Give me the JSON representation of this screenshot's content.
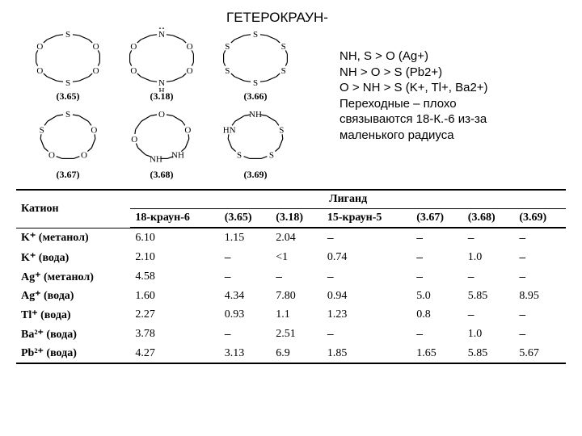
{
  "title": "ГЕТЕРОКРАУН-",
  "structures": {
    "row1": [
      {
        "label": "(3.65)",
        "ring": 18,
        "hetero": [
          [
            0,
            "S"
          ],
          [
            3,
            "O"
          ],
          [
            6,
            "O"
          ],
          [
            9,
            "S"
          ],
          [
            12,
            "O"
          ],
          [
            15,
            "O"
          ]
        ]
      },
      {
        "label": "(3.18)",
        "ring": 18,
        "hetero": [
          [
            0,
            "NH_top"
          ],
          [
            3,
            "O"
          ],
          [
            6,
            "O"
          ],
          [
            9,
            "NH_bot"
          ],
          [
            12,
            "O"
          ],
          [
            15,
            "O"
          ]
        ]
      },
      {
        "label": "(3.66)",
        "ring": 18,
        "hetero": [
          [
            0,
            "S"
          ],
          [
            3,
            "S"
          ],
          [
            6,
            "S"
          ],
          [
            9,
            "S"
          ],
          [
            12,
            "S"
          ],
          [
            15,
            "S"
          ]
        ]
      }
    ],
    "row2": [
      {
        "label": "(3.67)",
        "ring": 15,
        "hetero": [
          [
            0,
            "S"
          ],
          [
            3,
            "O"
          ],
          [
            6,
            "O"
          ],
          [
            9,
            "O"
          ],
          [
            12,
            "S"
          ]
        ]
      },
      {
        "label": "(3.68)",
        "ring": 15,
        "hetero": [
          [
            0,
            "O"
          ],
          [
            3,
            "O"
          ],
          [
            6,
            "NH_mid"
          ],
          [
            8,
            "NH_mid"
          ],
          [
            11,
            "O"
          ]
        ],
        "special": "368"
      },
      {
        "label": "(3.69)",
        "ring": 15,
        "hetero": [
          [
            0,
            "NH_l"
          ],
          [
            3,
            "S"
          ],
          [
            6,
            "S"
          ],
          [
            9,
            "S"
          ],
          [
            12,
            "HN_r"
          ]
        ],
        "special": "369"
      }
    ]
  },
  "side_text": [
    "NH, S > O (Ag+)",
    "NH > O > S (Pb2+)",
    "O > NH > S (K+, Tl+, Ba2+)",
    "Переходные – плохо",
    "связываются 18-К.-6 из-за",
    "маленького радиуса"
  ],
  "table": {
    "cation_header": "Катион",
    "ligand_header": "Лиганд",
    "columns": [
      "18-краун-6",
      "(3.65)",
      "(3.18)",
      "15-краун-5",
      "(3.67)",
      "(3.68)",
      "(3.69)"
    ],
    "rows": [
      {
        "cation": "K⁺ (метанол)",
        "cells": [
          "6.10",
          "1.15",
          "2.04",
          "–",
          "–",
          "–",
          "–"
        ]
      },
      {
        "cation": "K⁺ (вода)",
        "cells": [
          "2.10",
          "–",
          "<1",
          "0.74",
          "–",
          "1.0",
          "–"
        ]
      },
      {
        "cation": "Ag⁺ (метанол)",
        "cells": [
          "4.58",
          "–",
          "–",
          "–",
          "–",
          "–",
          "–"
        ]
      },
      {
        "cation": "Ag⁺ (вода)",
        "cells": [
          "1.60",
          "4.34",
          "7.80",
          "0.94",
          "5.0",
          "5.85",
          "8.95"
        ]
      },
      {
        "cation": "Tl⁺ (вода)",
        "cells": [
          "2.27",
          "0.93",
          "1.1",
          "1.23",
          "0.8",
          "–",
          "–"
        ]
      },
      {
        "cation": "Ba²⁺ (вода)",
        "cells": [
          "3.78",
          "–",
          "2.51",
          "–",
          "–",
          "1.0",
          "–"
        ]
      },
      {
        "cation": "Pb²⁺ (вода)",
        "cells": [
          "4.27",
          "3.13",
          "6.9",
          "1.85",
          "1.65",
          "5.85",
          "5.67"
        ]
      }
    ]
  }
}
